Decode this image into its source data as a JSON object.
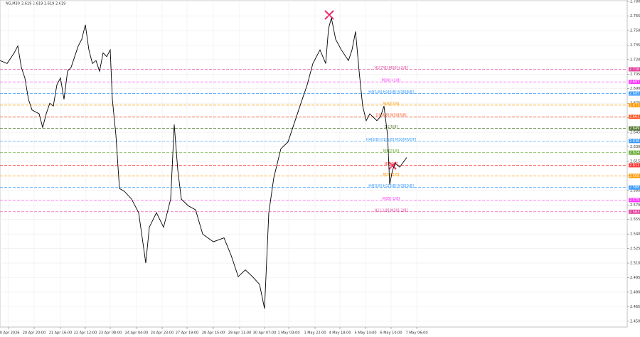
{
  "chart_data": {
    "type": "line",
    "symbol": "NG,M30",
    "ohlc": [
      2.619,
      2.619,
      2.619,
      2.619
    ],
    "x": [
      0,
      10,
      20,
      25,
      30,
      35,
      40,
      45,
      55,
      60,
      65,
      70,
      75,
      80,
      85,
      90,
      95,
      100,
      105,
      110,
      115,
      120,
      125,
      130,
      135,
      140,
      145,
      150,
      155,
      158,
      163,
      168,
      175,
      185,
      195,
      205,
      210,
      220,
      230,
      240,
      245,
      250,
      255,
      265,
      275,
      285,
      300,
      315,
      325,
      335,
      345,
      355,
      365,
      372,
      378,
      385,
      395,
      405,
      415,
      425,
      432,
      440,
      450,
      458,
      462,
      466,
      472,
      480,
      490,
      495,
      500,
      505,
      510,
      515,
      520,
      530,
      535,
      540,
      545,
      548,
      552,
      556,
      562,
      572
    ],
    "series": [
      {
        "name": "NG,M30",
        "color": "#000000",
        "values": [
          2.719,
          2.716,
          2.727,
          2.734,
          2.712,
          2.701,
          2.679,
          2.668,
          2.664,
          2.65,
          2.664,
          2.675,
          2.672,
          2.694,
          2.701,
          2.679,
          2.708,
          2.712,
          2.723,
          2.734,
          2.741,
          2.756,
          2.73,
          2.716,
          2.719,
          2.708,
          2.727,
          2.723,
          2.73,
          2.679,
          2.642,
          2.587,
          2.584,
          2.576,
          2.562,
          2.51,
          2.547,
          2.562,
          2.547,
          2.576,
          2.653,
          2.606,
          2.576,
          2.569,
          2.565,
          2.54,
          2.532,
          2.536,
          2.518,
          2.496,
          2.503,
          2.496,
          2.488,
          2.463,
          2.562,
          2.598,
          2.628,
          2.635,
          2.657,
          2.679,
          2.694,
          2.716,
          2.73,
          2.716,
          2.752,
          2.763,
          2.741,
          2.73,
          2.719,
          2.73,
          2.749,
          2.708,
          2.672,
          2.657,
          2.664,
          2.657,
          2.661,
          2.672,
          2.642,
          2.591,
          2.606,
          2.613,
          2.609,
          2.619
        ]
      }
    ],
    "xlim": [
      0,
      882
    ],
    "xticks": [
      {
        "value": 12,
        "label": "20 Apr 2026"
      },
      {
        "value": 48,
        "label": "20 Apr 20:00"
      },
      {
        "value": 85,
        "label": "21 Apr 16:00"
      },
      {
        "value": 120,
        "label": "22 Apr 12:00"
      },
      {
        "value": 155,
        "label": "23 Apr 08:00"
      },
      {
        "value": 192,
        "label": "24 Apr 04:00"
      },
      {
        "value": 228,
        "label": "24 Apr 23:00"
      },
      {
        "value": 263,
        "label": "27 Apr 19:00"
      },
      {
        "value": 300,
        "label": "28 Apr 15:00"
      },
      {
        "value": 337,
        "label": "29 Apr 11:00"
      },
      {
        "value": 372,
        "label": "30 Apr 07:00"
      },
      {
        "value": 406,
        "label": "1 May 03:00"
      },
      {
        "value": 443,
        "label": "1 May 22:00"
      },
      {
        "value": 478,
        "label": "4 May 18:00"
      },
      {
        "value": 514,
        "label": "5 May 14:00"
      },
      {
        "value": 550,
        "label": "6 May 10:00"
      },
      {
        "value": 586,
        "label": "7 May 06:00"
      }
    ],
    "ylim": [
      2.444,
      2.7815
    ],
    "yticks": [
      {
        "value": 2.78,
        "label": "2.780"
      },
      {
        "value": 2.765,
        "label": "2.765"
      },
      {
        "value": 2.75,
        "label": "2.750"
      },
      {
        "value": 2.735,
        "label": "2.735"
      },
      {
        "value": 2.72,
        "label": "2.720"
      },
      {
        "value": 2.705,
        "label": "2.705"
      },
      {
        "value": 2.69,
        "label": "2.690"
      },
      {
        "value": 2.675,
        "label": "2.675"
      },
      {
        "value": 2.66,
        "label": "2.660"
      },
      {
        "value": 2.645,
        "label": "2.645"
      },
      {
        "value": 2.63,
        "label": "2.630"
      },
      {
        "value": 2.615,
        "label": "2.615"
      },
      {
        "value": 2.6,
        "label": "2.600"
      },
      {
        "value": 2.585,
        "label": "2.585"
      },
      {
        "value": 2.57,
        "label": "2.570"
      },
      {
        "value": 2.555,
        "label": "2.555"
      },
      {
        "value": 2.54,
        "label": "2.540"
      },
      {
        "value": 2.525,
        "label": "2.525"
      },
      {
        "value": 2.51,
        "label": "2.510"
      },
      {
        "value": 2.495,
        "label": "2.495"
      },
      {
        "value": 2.48,
        "label": "2.480"
      },
      {
        "value": 2.465,
        "label": "2.465"
      },
      {
        "value": 2.45,
        "label": "2.450"
      }
    ],
    "grid": true,
    "levels": [
      {
        "price": 2.71,
        "price_label": "2.710",
        "label": "H1[7/8] M30[+2/8]",
        "color": "#e0409a"
      },
      {
        "price": 2.697,
        "price_label": "2.697",
        "label": "M30[+1/8]",
        "color": "#ff33ff"
      },
      {
        "price": 2.685,
        "price_label": "2.685",
        "label": "H4[1/8] H1[6/8] M30[8/8]",
        "color": "#3399ff"
      },
      {
        "price": 2.673,
        "price_label": "2.673",
        "label": "M30[7/8]",
        "color": "#ff9900"
      },
      {
        "price": 2.661,
        "price_label": "2.661",
        "label": "D1[8/8] M30[6/8]",
        "color": "#ff5522"
      },
      {
        "price": 2.649,
        "price_label": "2.649",
        "label": "D1[5/8]",
        "color": "#557733"
      },
      {
        "price": 2.636,
        "price_label": "2.636",
        "label": "H4[8/8] H1[5/8] M30[PIVOT]",
        "color": "#3399ff"
      },
      {
        "price": 2.624,
        "price_label": "2.624",
        "label": "M30[3/8]",
        "color": "#66aa33"
      },
      {
        "price": 2.611,
        "price_label": "2.611",
        "label": "H1[4/8]",
        "color": "#ff3333"
      },
      {
        "price": 2.6,
        "price_label": "2.600",
        "label": "M30[2/8]",
        "color": "#ff9900"
      },
      {
        "price": 2.588,
        "price_label": "2.588",
        "label": "H4[0/8] H1[3/8] M30[0/8]",
        "color": "#3399ff"
      },
      {
        "price": 2.575,
        "price_label": "2.575",
        "label": "M30[-1/8]",
        "color": "#ff33ff"
      },
      {
        "price": 2.563,
        "price_label": "2.563",
        "label": "H1[-1/8] M30[-2/8]",
        "color": "#e0409a"
      }
    ]
  }
}
